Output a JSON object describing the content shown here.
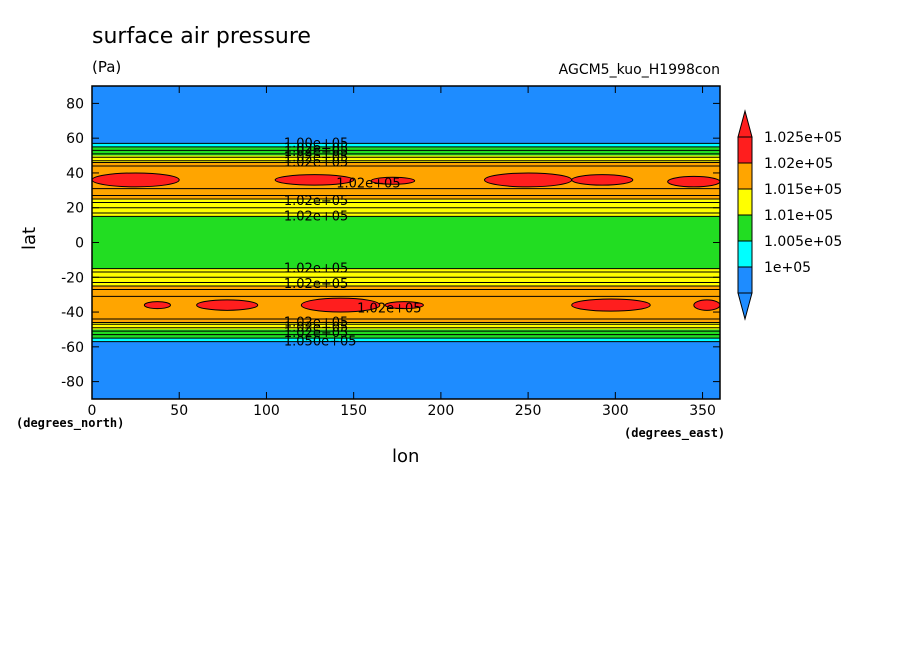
{
  "title": "surface air pressure",
  "units": "(Pa)",
  "run_label": "AGCM5_kuo_H1998con",
  "chart_data": {
    "type": "heatmap",
    "subtype": "filled-contour",
    "title": "surface air pressure",
    "units": "(Pa)",
    "xlabel": "lon",
    "ylabel": "lat",
    "x_units": "(degrees_east)",
    "y_units": "(degrees_north)",
    "xlim": [
      0,
      360
    ],
    "ylim": [
      -90,
      90
    ],
    "x_ticks": [
      0,
      50,
      100,
      150,
      200,
      250,
      300,
      350
    ],
    "y_ticks": [
      80,
      60,
      40,
      20,
      0,
      -20,
      -40,
      -60,
      -80
    ],
    "colorbar": {
      "levels": [
        {
          "label": "1.025e+05",
          "color": "#ff1e1e"
        },
        {
          "label": "1.02e+05",
          "color": "#ffa500"
        },
        {
          "label": "1.015e+05",
          "color": "#ffff00"
        },
        {
          "label": "1.01e+05",
          "color": "#22dd22"
        },
        {
          "label": "1.005e+05",
          "color": "#00ffff"
        },
        {
          "label": "1e+05",
          "color": "#1e8cff"
        }
      ],
      "under_color": "#1e8cff",
      "over_color": "#ff1e1e"
    },
    "lat_bands": [
      {
        "lat_from": 90,
        "lat_to": 57,
        "fill": "#1e8cff"
      },
      {
        "lat_from": 57,
        "lat_to": 55,
        "fill": "#00ffff"
      },
      {
        "lat_from": 55,
        "lat_to": 50,
        "fill": "#22dd22"
      },
      {
        "lat_from": 50,
        "lat_to": 46,
        "fill": "#ffff00"
      },
      {
        "lat_from": 46,
        "lat_to": 25,
        "fill": "#ffa500"
      },
      {
        "lat_from": 25,
        "lat_to": 15,
        "fill": "#ffff00"
      },
      {
        "lat_from": 15,
        "lat_to": -15,
        "fill": "#22dd22"
      },
      {
        "lat_from": -15,
        "lat_to": -25,
        "fill": "#ffff00"
      },
      {
        "lat_from": -25,
        "lat_to": -46,
        "fill": "#ffa500"
      },
      {
        "lat_from": -46,
        "lat_to": -50,
        "fill": "#ffff00"
      },
      {
        "lat_from": -50,
        "lat_to": -55,
        "fill": "#22dd22"
      },
      {
        "lat_from": -55,
        "lat_to": -57,
        "fill": "#00ffff"
      },
      {
        "lat_from": -57,
        "lat_to": -90,
        "fill": "#1e8cff"
      }
    ],
    "contour_lines_lat": [
      57,
      55,
      53,
      51,
      49,
      47,
      46,
      44,
      31,
      27,
      25,
      23,
      20,
      17,
      15,
      -15,
      -17,
      -20,
      -23,
      -25,
      -27,
      -31,
      -44,
      -46,
      -47,
      -49,
      -51,
      -53,
      -55,
      -57
    ],
    "high_cells": [
      {
        "lon_from": 0,
        "lon_to": 50,
        "lat": 36,
        "half_height": 4
      },
      {
        "lon_from": 105,
        "lon_to": 150,
        "lat": 36,
        "half_height": 3
      },
      {
        "lon_from": 160,
        "lon_to": 185,
        "lat": 35.5,
        "half_height": 2
      },
      {
        "lon_from": 225,
        "lon_to": 275,
        "lat": 36,
        "half_height": 4
      },
      {
        "lon_from": 275,
        "lon_to": 310,
        "lat": 36,
        "half_height": 3
      },
      {
        "lon_from": 330,
        "lon_to": 360,
        "lat": 35,
        "half_height": 3
      },
      {
        "lon_from": 30,
        "lon_to": 45,
        "lat": -36,
        "half_height": 2
      },
      {
        "lon_from": 60,
        "lon_to": 95,
        "lat": -36,
        "half_height": 3
      },
      {
        "lon_from": 120,
        "lon_to": 165,
        "lat": -36,
        "half_height": 4
      },
      {
        "lon_from": 168,
        "lon_to": 190,
        "lat": -36,
        "half_height": 2
      },
      {
        "lon_from": 275,
        "lon_to": 320,
        "lat": -36,
        "half_height": 3.5
      },
      {
        "lon_from": 345,
        "lon_to": 360,
        "lat": -36,
        "half_height": 3
      }
    ],
    "contour_labels": [
      {
        "text": "1.00e+05",
        "lon": 110,
        "lat": 57
      },
      {
        "text": "1.02e+05",
        "lon": 110,
        "lat": 54
      },
      {
        "text": "1.02e+05",
        "lon": 110,
        "lat": 52
      },
      {
        "text": "1.02e+05",
        "lon": 110,
        "lat": 49
      },
      {
        "text": "1.02e+05",
        "lon": 110,
        "lat": 46
      },
      {
        "text": "1.02e+05",
        "lon": 140,
        "lat": 34
      },
      {
        "text": "1.02e+05",
        "lon": 110,
        "lat": 24
      },
      {
        "text": "1.02e+05",
        "lon": 110,
        "lat": 15
      },
      {
        "text": "1.02e+05",
        "lon": 110,
        "lat": -15
      },
      {
        "text": "1.02e+05",
        "lon": 110,
        "lat": -24
      },
      {
        "text": "1.02e+05",
        "lon": 152,
        "lat": -38
      },
      {
        "text": "1.02e+05",
        "lon": 110,
        "lat": -46
      },
      {
        "text": "1.02e+05",
        "lon": 110,
        "lat": -49
      },
      {
        "text": "1.02e+05",
        "lon": 110,
        "lat": -52
      },
      {
        "text": "1.050e+05",
        "lon": 110,
        "lat": -57
      }
    ]
  }
}
